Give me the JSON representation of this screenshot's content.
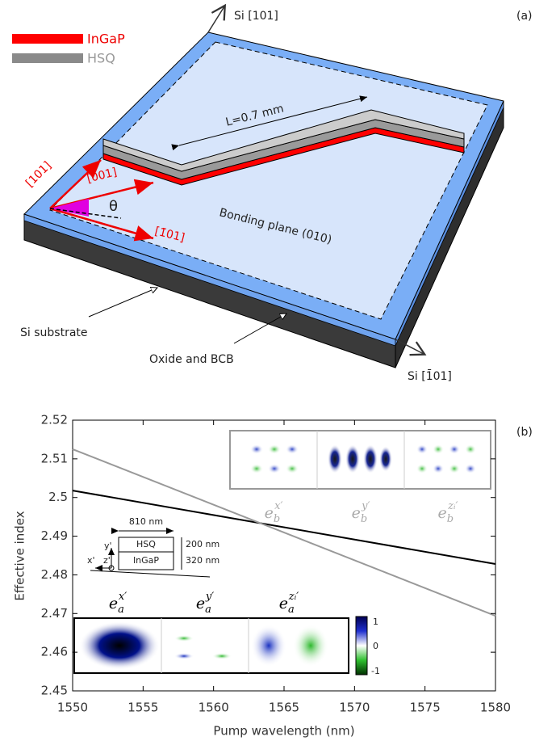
{
  "diagram": {
    "panel_label": "(a)",
    "axis_top": "Si [101]",
    "axis_right": "Si [1̄01]",
    "legend": [
      "InGaP",
      "HSQ"
    ],
    "length_label": "L=0.7 mm",
    "dir_101": "[101]",
    "dir_001": "[001]",
    "dir_m101": "[1̄01]",
    "theta": "θ",
    "plane_label": "Bonding plane (010)",
    "substrate_label": "Si substrate",
    "oxide_label": "Oxide and BCB"
  },
  "chart_data": {
    "type": "line",
    "panel_label": "(b)",
    "xlabel": "Pump wavelength (nm)",
    "ylabel": "Effective index",
    "x": [
      1550,
      1580
    ],
    "series": [
      {
        "color": "#000000",
        "values": [
          2.5018,
          2.4828
        ]
      },
      {
        "color": "#999999",
        "values": [
          2.5125,
          2.4694
        ]
      }
    ],
    "xlim": [
      1550,
      1580
    ],
    "xticks": [
      1550,
      1555,
      1560,
      1565,
      1570,
      1575,
      1580
    ],
    "ylim": [
      2.45,
      2.52
    ],
    "yticks": [
      2.45,
      2.46,
      2.47,
      2.48,
      2.49,
      2.5,
      2.51,
      2.52
    ],
    "inset_b_labels": [
      {
        "base": "e",
        "sub": "b",
        "sup": "x′"
      },
      {
        "base": "e",
        "sub": "b",
        "sup": "y′"
      },
      {
        "base": "e",
        "sub": "b",
        "sup": "zᵢ′"
      }
    ],
    "inset_a_labels": [
      {
        "base": "e",
        "sub": "a",
        "sup": "x′"
      },
      {
        "base": "e",
        "sub": "a",
        "sup": "y′"
      },
      {
        "base": "e",
        "sub": "a",
        "sup": "zᵢ′"
      }
    ],
    "colorbar_labels": [
      "1",
      "0",
      "-1"
    ],
    "schematic": {
      "width": "810 nm",
      "top_layer": "HSQ",
      "bottom_layer": "InGaP",
      "top_thickness": "200 nm",
      "bottom_thickness": "320 nm",
      "y_axis": "y'",
      "x_axis": "x'",
      "z_axis": "z'"
    }
  }
}
